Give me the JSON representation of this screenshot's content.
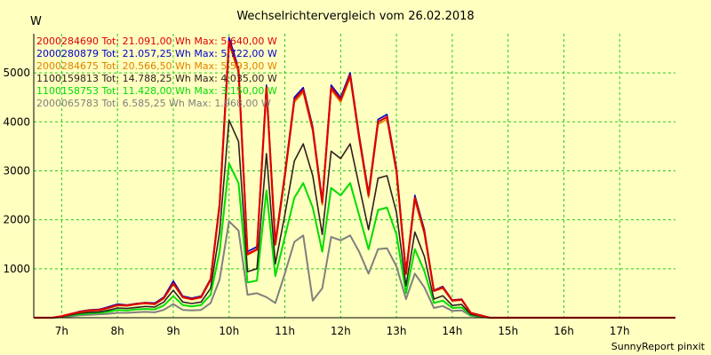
{
  "chart_data": {
    "type": "line",
    "title": "Wechselrichtervergleich vom 26.02.2018",
    "ylabel": "W",
    "xlabel": "",
    "footer": "SunnyReport pinxit",
    "ylim": [
      0,
      5800
    ],
    "yticks": [
      1000,
      2000,
      3000,
      4000,
      5000
    ],
    "xlim": [
      6.5,
      18.0
    ],
    "xticks": [
      {
        "v": 7,
        "label": "7h"
      },
      {
        "v": 8,
        "label": "8h"
      },
      {
        "v": 9,
        "label": "9h"
      },
      {
        "v": 10,
        "label": "10h"
      },
      {
        "v": 11,
        "label": "11h"
      },
      {
        "v": 12,
        "label": "12h"
      },
      {
        "v": 13,
        "label": "13h"
      },
      {
        "v": 14,
        "label": "14h"
      },
      {
        "v": 15,
        "label": "15h"
      },
      {
        "v": 16,
        "label": "16h"
      },
      {
        "v": 17,
        "label": "17h"
      }
    ],
    "grid": true,
    "legend_position": "top-left",
    "x": [
      6.5,
      6.83,
      7.0,
      7.17,
      7.33,
      7.5,
      7.67,
      7.83,
      8.0,
      8.17,
      8.33,
      8.5,
      8.67,
      8.83,
      9.0,
      9.17,
      9.33,
      9.5,
      9.67,
      9.83,
      10.0,
      10.17,
      10.33,
      10.5,
      10.67,
      10.83,
      11.0,
      11.17,
      11.33,
      11.5,
      11.67,
      11.83,
      12.0,
      12.17,
      12.33,
      12.5,
      12.67,
      12.83,
      13.0,
      13.17,
      13.33,
      13.5,
      13.67,
      13.83,
      14.0,
      14.17,
      14.33,
      14.5,
      14.67,
      14.83,
      15.0,
      15.17,
      15.33,
      15.5,
      15.67,
      15.83,
      16.0,
      16.17,
      16.33,
      16.5,
      16.67,
      16.83,
      17.0,
      17.17,
      17.33,
      17.5,
      17.67,
      17.83,
      18.0
    ],
    "series": [
      {
        "name": "2000284690 Tot: 21.091,00 Wh Max: 5.640,00 W",
        "color": "#dd0000",
        "width": 2.2,
        "values": [
          0,
          0,
          30,
          80,
          120,
          150,
          160,
          200,
          260,
          250,
          280,
          300,
          280,
          400,
          700,
          420,
          380,
          420,
          780,
          2300,
          5640,
          5050,
          1300,
          1400,
          4700,
          1500,
          2900,
          4450,
          4650,
          3850,
          2350,
          4700,
          4450,
          4950,
          3700,
          2500,
          4000,
          4100,
          3000,
          900,
          2450,
          1750,
          550,
          620,
          350,
          370,
          100,
          50,
          0,
          0,
          0,
          0,
          0,
          0,
          0,
          0,
          0,
          0,
          0,
          0,
          0,
          0,
          0,
          0,
          0,
          0,
          0,
          0,
          0
        ]
      },
      {
        "name": "2000280879 Tot: 21.057,25 Wh Max: 5.722,00 W",
        "color": "#0000cc",
        "width": 1.6,
        "values": [
          0,
          0,
          30,
          80,
          130,
          160,
          170,
          220,
          280,
          260,
          290,
          310,
          300,
          420,
          750,
          440,
          400,
          440,
          800,
          2350,
          5722,
          5100,
          1350,
          1450,
          4750,
          1550,
          2950,
          4500,
          4700,
          3900,
          2400,
          4750,
          4500,
          5000,
          3750,
          2550,
          4050,
          4150,
          3050,
          950,
          2500,
          1800,
          560,
          640,
          360,
          380,
          100,
          50,
          0,
          0,
          0,
          0,
          0,
          0,
          0,
          0,
          0,
          0,
          0,
          0,
          0,
          0,
          0,
          0,
          0,
          0,
          0,
          0,
          0
        ]
      },
      {
        "name": "2000284675 Tot: 20.566,50 Wh Max: 5.593,00 W",
        "color": "#e08000",
        "width": 1.6,
        "values": [
          0,
          0,
          25,
          75,
          110,
          140,
          150,
          190,
          250,
          240,
          270,
          290,
          270,
          390,
          690,
          410,
          370,
          410,
          760,
          2250,
          5593,
          5000,
          1280,
          1380,
          4650,
          1480,
          2850,
          4400,
          4600,
          3800,
          2300,
          4650,
          4400,
          4900,
          3650,
          2450,
          3950,
          4050,
          2950,
          880,
          2400,
          1700,
          540,
          600,
          340,
          360,
          100,
          40,
          0,
          0,
          0,
          0,
          0,
          0,
          0,
          0,
          0,
          0,
          0,
          0,
          0,
          0,
          0,
          0,
          0,
          0,
          0,
          0,
          0
        ]
      },
      {
        "name": "1100159813 Tot: 14.788,25 Wh Max: 4.035,00 W",
        "color": "#302020",
        "width": 1.6,
        "values": [
          0,
          0,
          20,
          60,
          90,
          110,
          120,
          150,
          200,
          190,
          210,
          230,
          220,
          320,
          560,
          320,
          290,
          320,
          600,
          1750,
          4035,
          3600,
          940,
          1000,
          3350,
          1100,
          2100,
          3200,
          3550,
          2900,
          1700,
          3400,
          3250,
          3550,
          2700,
          1800,
          2850,
          2900,
          2150,
          650,
          1750,
          1250,
          380,
          450,
          250,
          270,
          70,
          30,
          0,
          0,
          0,
          0,
          0,
          0,
          0,
          0,
          0,
          0,
          0,
          0,
          0,
          0,
          0,
          0,
          0,
          0,
          0,
          0,
          0
        ]
      },
      {
        "name": "1100158753 Tot: 11.428,00 Wh Max: 3.150,00 W",
        "color": "#00dd00",
        "width": 2.0,
        "values": [
          0,
          0,
          15,
          50,
          70,
          90,
          100,
          120,
          160,
          150,
          170,
          180,
          170,
          250,
          440,
          260,
          230,
          260,
          470,
          1350,
          3150,
          2750,
          720,
          760,
          2600,
          850,
          1650,
          2450,
          2750,
          2250,
          1350,
          2650,
          2500,
          2750,
          2100,
          1400,
          2200,
          2250,
          1700,
          500,
          1400,
          950,
          300,
          350,
          200,
          210,
          55,
          25,
          0,
          0,
          0,
          0,
          0,
          0,
          0,
          0,
          0,
          0,
          0,
          0,
          0,
          0,
          0,
          0,
          0,
          0,
          0,
          0,
          0
        ]
      },
      {
        "name": "2000065783 Tot: 6.585,25 Wh Max: 1.968,00 W",
        "color": "#808080",
        "width": 2.0,
        "values": [
          0,
          0,
          10,
          30,
          50,
          60,
          70,
          80,
          100,
          100,
          110,
          120,
          110,
          160,
          280,
          160,
          150,
          160,
          300,
          780,
          1968,
          1780,
          470,
          500,
          420,
          300,
          900,
          1550,
          1680,
          350,
          600,
          1650,
          1580,
          1680,
          1350,
          900,
          1400,
          1420,
          1050,
          380,
          900,
          620,
          200,
          240,
          140,
          150,
          40,
          20,
          0,
          0,
          0,
          0,
          0,
          0,
          0,
          0,
          0,
          0,
          0,
          0,
          0,
          0,
          0,
          0,
          0,
          0,
          0,
          0,
          0
        ]
      }
    ]
  }
}
